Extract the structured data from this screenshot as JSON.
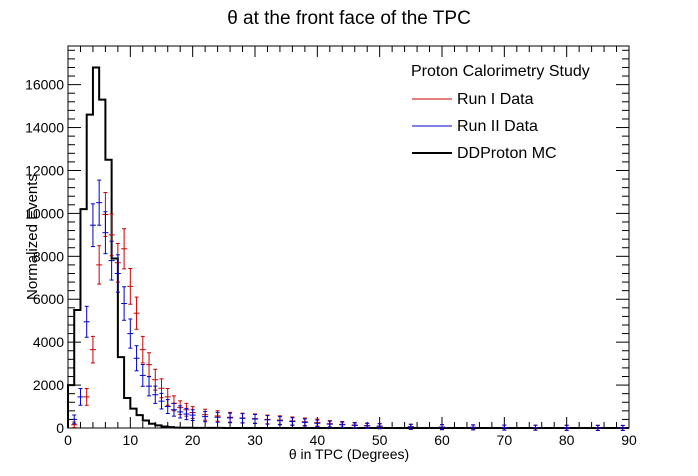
{
  "chart_data": {
    "type": "histogram",
    "title": "θ at the front face of the TPC",
    "xlabel": "θ in TPC (Degrees)",
    "ylabel": "Normalized Events",
    "xlim": [
      0,
      90
    ],
    "ylim": [
      0,
      17800
    ],
    "x_ticks": [
      0,
      10,
      20,
      30,
      40,
      50,
      60,
      70,
      80,
      90
    ],
    "y_ticks": [
      0,
      2000,
      4000,
      6000,
      8000,
      10000,
      12000,
      14000,
      16000
    ],
    "grid": false,
    "legend": {
      "position": "top-right",
      "header": "Proton Calorimetry Study",
      "entries": [
        "Run I Data",
        "Run II Data",
        "DDProton MC"
      ]
    },
    "series": [
      {
        "name": "Run I Data",
        "style": "points-with-errors",
        "color": "#cc0000",
        "x": [
          1,
          3,
          4,
          5,
          6,
          7,
          8,
          9,
          10,
          11,
          12,
          13,
          14,
          15,
          16,
          17,
          18,
          19,
          20,
          22,
          24,
          26,
          28,
          30,
          32,
          34,
          36,
          38,
          40,
          42,
          44,
          46,
          48,
          50,
          55,
          60,
          65,
          70,
          75,
          80,
          85,
          89
        ],
        "y": [
          150,
          1450,
          3650,
          7600,
          9950,
          9000,
          7700,
          8350,
          6600,
          5350,
          3650,
          2950,
          2250,
          1850,
          1450,
          1150,
          950,
          850,
          720,
          620,
          560,
          500,
          470,
          440,
          400,
          370,
          330,
          290,
          250,
          200,
          170,
          140,
          110,
          90,
          60,
          40,
          30,
          20,
          15,
          10,
          8,
          5
        ]
      },
      {
        "name": "Run II Data",
        "style": "points-with-errors",
        "color": "#0000cc",
        "x": [
          1,
          2,
          3,
          4,
          5,
          6,
          7,
          8,
          9,
          10,
          11,
          12,
          13,
          14,
          15,
          16,
          17,
          18,
          19,
          20,
          22,
          24,
          26,
          28,
          30,
          32,
          34,
          36,
          38,
          40,
          42,
          44,
          46,
          48,
          50,
          55,
          60,
          65,
          70,
          75,
          80,
          85,
          89
        ],
        "y": [
          400,
          1450,
          4950,
          9450,
          10500,
          9100,
          7800,
          7200,
          5800,
          4400,
          3250,
          2450,
          1950,
          1550,
          1250,
          1000,
          850,
          750,
          650,
          600,
          530,
          500,
          470,
          450,
          420,
          380,
          340,
          300,
          260,
          220,
          180,
          150,
          120,
          100,
          80,
          55,
          40,
          30,
          20,
          15,
          10,
          8,
          5
        ]
      },
      {
        "name": "DDProton MC",
        "style": "step",
        "color": "#000000",
        "bin_edges": [
          0,
          1,
          2,
          3,
          4,
          5,
          6,
          7,
          8,
          9,
          10,
          11,
          12,
          13,
          14,
          15,
          16,
          17,
          18,
          20,
          25,
          90
        ],
        "values": [
          2000,
          5500,
          10200,
          14600,
          16800,
          15300,
          12500,
          7900,
          3300,
          1400,
          900,
          600,
          350,
          200,
          120,
          70,
          40,
          20,
          10,
          5,
          0
        ]
      }
    ]
  }
}
